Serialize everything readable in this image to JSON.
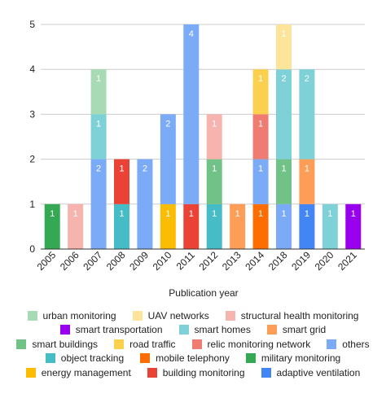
{
  "chart_data": {
    "type": "bar",
    "stacked": true,
    "xlabel": "Publication year",
    "ylabel": "",
    "ylim": [
      0,
      5
    ],
    "yticks": [
      0,
      1,
      2,
      3,
      4,
      5
    ],
    "grid": true,
    "legend_position": "bottom",
    "categories": [
      "2005",
      "2006",
      "2007",
      "2008",
      "2009",
      "2010",
      "2011",
      "2012",
      "2013",
      "2014",
      "2018",
      "2019",
      "2020",
      "2021"
    ],
    "series": [
      {
        "name": "military monitoring",
        "color": "#34a853",
        "values": [
          1,
          0,
          0,
          0,
          0,
          0,
          0,
          0,
          0,
          0,
          0,
          0,
          0,
          0
        ]
      },
      {
        "name": "object tracking",
        "color": "#46bdc6",
        "values": [
          0,
          0,
          0,
          1,
          0,
          0,
          0,
          1,
          0,
          0,
          0,
          0,
          0,
          0
        ]
      },
      {
        "name": "adaptive ventilation",
        "color": "#4285f4",
        "values": [
          0,
          0,
          0,
          0,
          0,
          0,
          0,
          0,
          0,
          0,
          0,
          1,
          0,
          0
        ]
      },
      {
        "name": "building monitoring",
        "color": "#ea4335",
        "values": [
          0,
          0,
          0,
          1,
          0,
          0,
          1,
          0,
          0,
          0,
          0,
          0,
          0,
          0
        ]
      },
      {
        "name": "mobile telephony",
        "color": "#ff6d01",
        "values": [
          0,
          0,
          0,
          0,
          0,
          0,
          0,
          0,
          0,
          1,
          0,
          0,
          0,
          0
        ]
      },
      {
        "name": "energy management",
        "color": "#fbbc04",
        "values": [
          0,
          0,
          0,
          0,
          0,
          1,
          0,
          0,
          0,
          0,
          0,
          0,
          0,
          0
        ]
      },
      {
        "name": "smart transportation",
        "color": "#9900ee",
        "values": [
          0,
          0,
          0,
          0,
          0,
          0,
          0,
          0,
          0,
          0,
          0,
          0,
          0,
          1
        ]
      },
      {
        "name": "smart grid",
        "color": "#fd9d57",
        "values": [
          0,
          0,
          0,
          0,
          0,
          0,
          0,
          0,
          1,
          0,
          0,
          1,
          0,
          0
        ]
      },
      {
        "name": "others",
        "color": "#7baaf7",
        "values": [
          0,
          0,
          2,
          0,
          2,
          2,
          4,
          0,
          0,
          1,
          1,
          0,
          0,
          0
        ]
      },
      {
        "name": "smart buildings",
        "color": "#71c287",
        "values": [
          0,
          0,
          0,
          0,
          0,
          0,
          0,
          1,
          0,
          0,
          1,
          0,
          0,
          0
        ]
      },
      {
        "name": "relic monitoring network",
        "color": "#f07b72",
        "values": [
          0,
          0,
          0,
          0,
          0,
          0,
          0,
          0,
          0,
          1,
          0,
          0,
          0,
          0
        ]
      },
      {
        "name": "road traffic",
        "color": "#fcd04f",
        "values": [
          0,
          0,
          0,
          0,
          0,
          0,
          0,
          0,
          0,
          1,
          0,
          0,
          0,
          0
        ]
      },
      {
        "name": "smart homes",
        "color": "#7ed1d7",
        "values": [
          0,
          0,
          1,
          0,
          0,
          0,
          0,
          0,
          0,
          0,
          2,
          2,
          1,
          0
        ]
      },
      {
        "name": "structural health monitoring",
        "color": "#f7b4ae",
        "values": [
          0,
          1,
          0,
          0,
          0,
          0,
          0,
          1,
          0,
          0,
          0,
          0,
          0,
          0
        ]
      },
      {
        "name": "urban monitoring",
        "color": "#a8dab5",
        "values": [
          0,
          0,
          1,
          0,
          0,
          0,
          0,
          0,
          0,
          0,
          0,
          0,
          0,
          0
        ]
      },
      {
        "name": "UAV networks",
        "color": "#fde49b",
        "values": [
          0,
          0,
          0,
          0,
          0,
          0,
          0,
          0,
          0,
          0,
          1,
          0,
          0,
          0
        ]
      }
    ]
  },
  "legend_rows": [
    [
      "urban monitoring",
      "UAV networks",
      "structural health monitoring"
    ],
    [
      "smart transportation",
      "smart homes",
      "smart grid"
    ],
    [
      "smart buildings",
      "road traffic",
      "relic monitoring network",
      "others"
    ],
    [
      "object tracking",
      "mobile telephony",
      "military monitoring"
    ],
    [
      "energy management",
      "building monitoring",
      "adaptive ventilation"
    ]
  ]
}
